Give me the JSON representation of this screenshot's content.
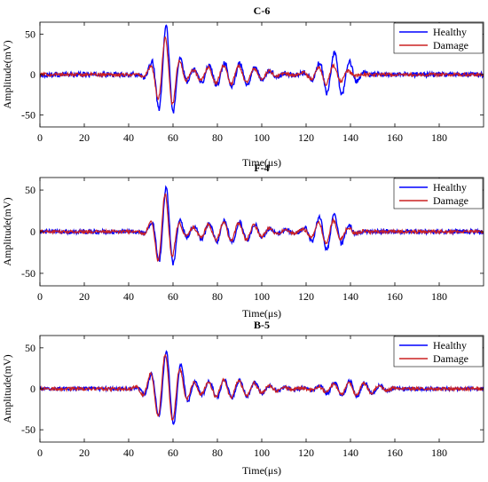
{
  "colors": {
    "healthy": "#0000ff",
    "damage": "#cc2222",
    "axis": "#000000"
  },
  "chart_data": [
    {
      "type": "line",
      "title": "C-6",
      "xlabel": "Time(μs)",
      "ylabel": "Amplitude(mV)",
      "xlim": [
        0,
        200
      ],
      "ylim": [
        -65,
        65
      ],
      "xticks": [
        0,
        20,
        40,
        60,
        80,
        100,
        120,
        140,
        160,
        180
      ],
      "yticks": [
        -50,
        0,
        50
      ],
      "grid": false,
      "legend_position": "top-right",
      "legend": [
        "Healthy",
        "Damage"
      ],
      "series": [
        {
          "name": "Healthy",
          "peak": 60,
          "packet1": {
            "center_us": 57,
            "width_us": 6
          },
          "packet2": {
            "center_us": 133,
            "amplitude": 28,
            "width_us": 9
          },
          "noise": 3
        },
        {
          "name": "Damage",
          "peak": 45,
          "packet1": {
            "center_us": 57,
            "width_us": 6
          },
          "packet2": {
            "center_us": 130,
            "amplitude": 12,
            "width_us": 9
          },
          "noise": 2
        }
      ]
    },
    {
      "type": "line",
      "title": "F-4",
      "xlabel": "Time(μs)",
      "ylabel": "Amplitude(mV)",
      "xlim": [
        0,
        200
      ],
      "ylim": [
        -65,
        65
      ],
      "xticks": [
        0,
        20,
        40,
        60,
        80,
        100,
        120,
        140,
        160,
        180
      ],
      "yticks": [
        -50,
        0,
        50
      ],
      "grid": false,
      "legend_position": "top-right",
      "legend": [
        "Healthy",
        "Damage"
      ],
      "series": [
        {
          "name": "Healthy",
          "peak": 52,
          "packet1": {
            "center_us": 57,
            "width_us": 5.5
          },
          "packet2": {
            "center_us": 130,
            "amplitude": 22,
            "width_us": 9
          },
          "noise": 2.5
        },
        {
          "name": "Damage",
          "peak": 45,
          "packet1": {
            "center_us": 56,
            "width_us": 5.5
          },
          "packet2": {
            "center_us": 130,
            "amplitude": 14,
            "width_us": 9
          },
          "noise": 2
        }
      ]
    },
    {
      "type": "line",
      "title": "B-5",
      "xlabel": "Time(μs)",
      "ylabel": "Amplitude(mV)",
      "xlim": [
        0,
        200
      ],
      "ylim": [
        -65,
        65
      ],
      "xticks": [
        0,
        20,
        40,
        60,
        80,
        100,
        120,
        140,
        160,
        180
      ],
      "yticks": [
        -50,
        0,
        50
      ],
      "grid": false,
      "legend_position": "top-right",
      "legend": [
        "Healthy",
        "Damage"
      ],
      "series": [
        {
          "name": "Healthy",
          "peak": 46,
          "packet1": {
            "center_us": 58,
            "width_us": 8
          },
          "packet2": {
            "center_us": 140,
            "amplitude": 10,
            "width_us": 14
          },
          "noise": 2
        },
        {
          "name": "Damage",
          "peak": 42,
          "packet1": {
            "center_us": 57,
            "width_us": 8
          },
          "packet2": {
            "center_us": 140,
            "amplitude": 8,
            "width_us": 14
          },
          "noise": 2
        }
      ]
    }
  ]
}
